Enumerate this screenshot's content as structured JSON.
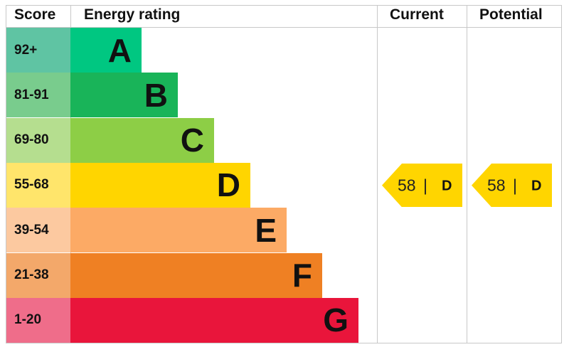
{
  "chart_data": {
    "type": "table",
    "headers": {
      "score": "Score",
      "rating": "Energy rating",
      "current": "Current",
      "potential": "Potential"
    },
    "bands": [
      {
        "score": "92+",
        "letter": "A",
        "color": "#00c781",
        "score_color": "#5fc4a3"
      },
      {
        "score": "81-91",
        "letter": "B",
        "color": "#19b459",
        "score_color": "#79cc8d"
      },
      {
        "score": "69-80",
        "letter": "C",
        "color": "#8dce46",
        "score_color": "#b5de8f"
      },
      {
        "score": "55-68",
        "letter": "D",
        "color": "#ffd500",
        "score_color": "#ffe56b"
      },
      {
        "score": "39-54",
        "letter": "E",
        "color": "#fcaa65",
        "score_color": "#fcc9a0"
      },
      {
        "score": "21-38",
        "letter": "F",
        "color": "#ef8023",
        "score_color": "#f3a86a"
      },
      {
        "score": "1-20",
        "letter": "G",
        "color": "#e9153b",
        "score_color": "#ef6d8a"
      }
    ],
    "current": {
      "value": "58",
      "letter": "D",
      "color": "#ffd500"
    },
    "potential": {
      "value": "58",
      "letter": "D",
      "color": "#ffd500"
    }
  }
}
